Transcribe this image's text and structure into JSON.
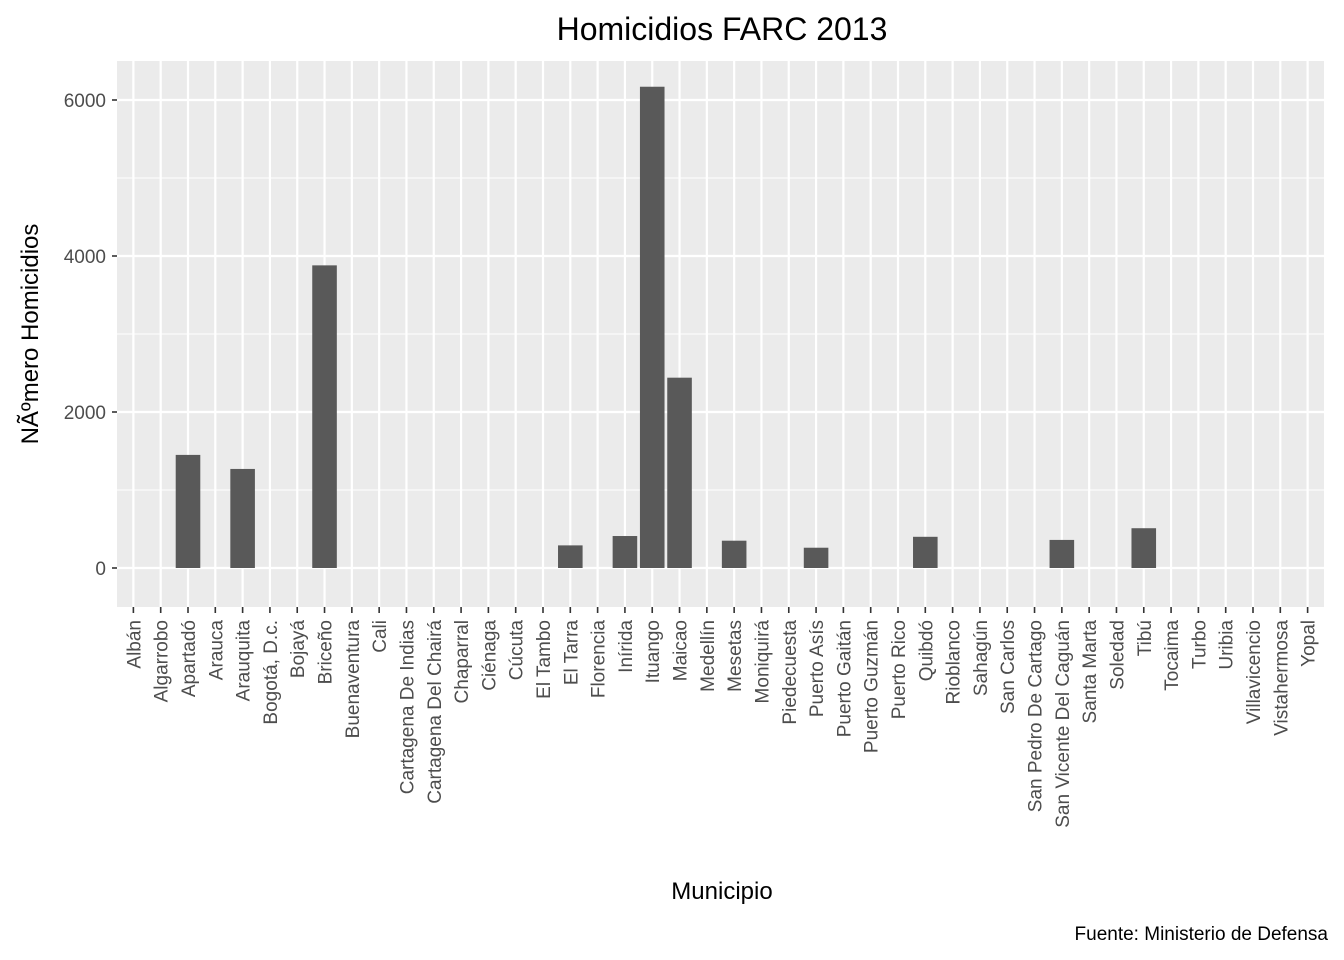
{
  "chart_data": {
    "type": "bar",
    "title": "Homicidios FARC 2013",
    "xlabel": "Municipio",
    "ylabel": "NÃºmero Homicidios",
    "caption": "Fuente: Ministerio de Defensa",
    "ylim": [
      -500,
      6500
    ],
    "yticks": [
      0,
      2000,
      4000,
      6000
    ],
    "y_tick_labels": [
      "0",
      "2000",
      "4000",
      "6000"
    ],
    "grid": true,
    "panel_background": "#ebebeb",
    "bar_color": "#595959",
    "categories": [
      "Albán",
      "Algarrobo",
      "Apartadó",
      "Arauca",
      "Arauquita",
      "Bogotá, D.c.",
      "Bojayá",
      "Briceño",
      "Buenaventura",
      "Cali",
      "Cartagena De Indias",
      "Cartagena Del Chairá",
      "Chaparral",
      "Ciénaga",
      "Cúcuta",
      "El Tambo",
      "El Tarra",
      "Florencia",
      "Inírida",
      "Ituango",
      "Maicao",
      "Medellín",
      "Mesetas",
      "Moniquirá",
      "Piedecuesta",
      "Puerto Asís",
      "Puerto Gaitán",
      "Puerto Guzmán",
      "Puerto Rico",
      "Quibdó",
      "Rioblanco",
      "Sahagún",
      "San Carlos",
      "San Pedro De Cartago",
      "San Vicente Del Caguán",
      "Santa Marta",
      "Soledad",
      "Tibú",
      "Tocaima",
      "Turbo",
      "Uribia",
      "Villavicencio",
      "Vistahermosa",
      "Yopal"
    ],
    "values": [
      0,
      0,
      1450,
      0,
      1270,
      0,
      0,
      3880,
      0,
      0,
      0,
      0,
      0,
      0,
      0,
      0,
      290,
      0,
      410,
      6170,
      2440,
      0,
      350,
      0,
      0,
      260,
      0,
      0,
      0,
      400,
      0,
      0,
      0,
      0,
      360,
      0,
      0,
      510,
      0,
      0,
      0,
      0,
      0,
      0
    ]
  }
}
